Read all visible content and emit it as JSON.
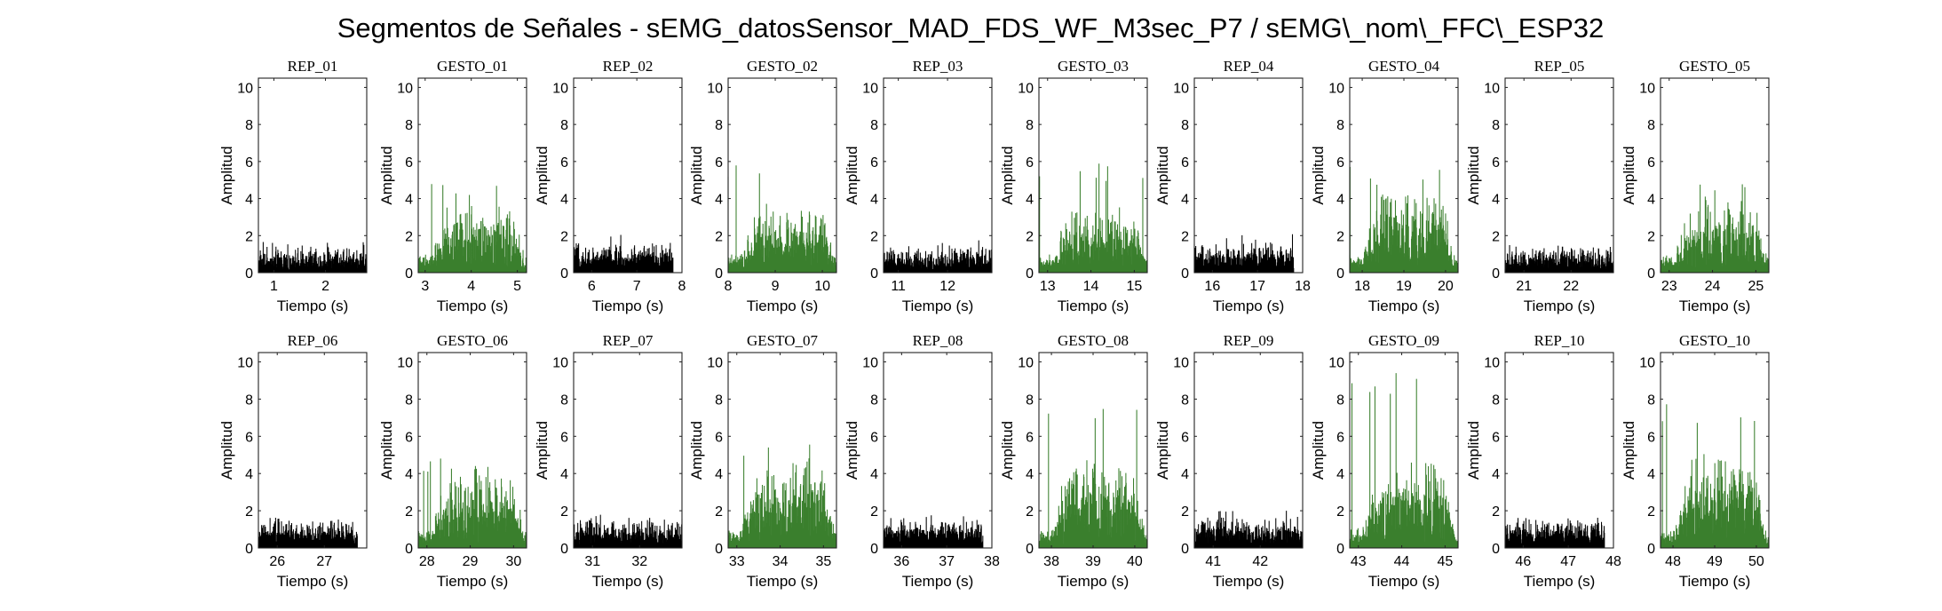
{
  "figure": {
    "title": "Segmentos de Señales - sEMG_datosSensor_MAD_FDS_WF_M3sec_P7 / sEMG\\_nom\\_FFC\\_ESP32"
  },
  "chart_data": {
    "type": "area",
    "layout": "2 rows x 10 columns of small multiples",
    "xlabel": "Tiempo (s)",
    "ylabel": "Amplitud",
    "ylim": [
      0,
      10.5
    ],
    "yticks": [
      0,
      2,
      4,
      6,
      8,
      10
    ],
    "colors": {
      "rep": "#000000",
      "gesto": "#3a7f2d"
    },
    "panels": [
      {
        "title": "REP_01",
        "kind": "rep",
        "xlim": [
          0.7,
          2.8
        ],
        "xticks": [
          1,
          2
        ],
        "data_end": 2.8,
        "baseline": 0.5,
        "noise": 1.3,
        "peak": 1.7
      },
      {
        "title": "GESTO_01",
        "kind": "gesto",
        "xlim": [
          2.85,
          5.2
        ],
        "xticks": [
          3,
          4,
          5
        ],
        "data_end": 5.2,
        "baseline": 0.6,
        "noise": 3.6,
        "peak": 4.9
      },
      {
        "title": "REP_02",
        "kind": "rep",
        "xlim": [
          5.6,
          8.0
        ],
        "xticks": [
          6,
          7,
          8
        ],
        "data_end": 7.8,
        "baseline": 0.5,
        "noise": 1.5,
        "peak": 2.1
      },
      {
        "title": "GESTO_02",
        "kind": "gesto",
        "xlim": [
          8.0,
          10.3
        ],
        "xticks": [
          8,
          9,
          10
        ],
        "data_end": 10.3,
        "baseline": 0.6,
        "noise": 3.6,
        "peak": 6.3
      },
      {
        "title": "REP_03",
        "kind": "rep",
        "xlim": [
          10.7,
          12.9
        ],
        "xticks": [
          11,
          12
        ],
        "data_end": 12.9,
        "baseline": 0.5,
        "noise": 1.4,
        "peak": 1.8
      },
      {
        "title": "GESTO_03",
        "kind": "gesto",
        "xlim": [
          12.8,
          15.3
        ],
        "xticks": [
          13,
          14,
          15
        ],
        "data_end": 15.3,
        "baseline": 0.6,
        "noise": 3.5,
        "peak": 6.0
      },
      {
        "title": "REP_04",
        "kind": "rep",
        "xlim": [
          15.6,
          18.0
        ],
        "xticks": [
          16,
          17,
          18
        ],
        "data_end": 17.8,
        "baseline": 0.5,
        "noise": 1.5,
        "peak": 2.1
      },
      {
        "title": "GESTO_04",
        "kind": "gesto",
        "xlim": [
          17.7,
          20.3
        ],
        "xticks": [
          18,
          19,
          20
        ],
        "data_end": 20.3,
        "baseline": 0.6,
        "noise": 4.5,
        "peak": 5.8
      },
      {
        "title": "REP_05",
        "kind": "rep",
        "xlim": [
          20.6,
          22.9
        ],
        "xticks": [
          21,
          22
        ],
        "data_end": 22.9,
        "baseline": 0.5,
        "noise": 1.4,
        "peak": 1.7
      },
      {
        "title": "GESTO_05",
        "kind": "gesto",
        "xlim": [
          22.8,
          25.3
        ],
        "xticks": [
          23,
          24,
          25
        ],
        "data_end": 25.3,
        "baseline": 0.6,
        "noise": 4.0,
        "peak": 4.9
      },
      {
        "title": "REP_06",
        "kind": "rep",
        "xlim": [
          25.6,
          27.9
        ],
        "xticks": [
          26,
          27
        ],
        "data_end": 27.7,
        "baseline": 0.5,
        "noise": 1.4,
        "peak": 1.7
      },
      {
        "title": "GESTO_06",
        "kind": "gesto",
        "xlim": [
          27.8,
          30.3
        ],
        "xticks": [
          28,
          29,
          30
        ],
        "data_end": 30.3,
        "baseline": 0.6,
        "noise": 4.2,
        "peak": 5.0
      },
      {
        "title": "REP_07",
        "kind": "rep",
        "xlim": [
          30.6,
          32.9
        ],
        "xticks": [
          31,
          32
        ],
        "data_end": 32.9,
        "baseline": 0.5,
        "noise": 1.5,
        "peak": 1.9
      },
      {
        "title": "GESTO_07",
        "kind": "gesto",
        "xlim": [
          32.8,
          35.3
        ],
        "xticks": [
          33,
          34,
          35
        ],
        "data_end": 35.3,
        "baseline": 0.6,
        "noise": 5.0,
        "peak": 6.0
      },
      {
        "title": "REP_08",
        "kind": "rep",
        "xlim": [
          35.6,
          38.0
        ],
        "xticks": [
          36,
          37,
          38
        ],
        "data_end": 37.8,
        "baseline": 0.5,
        "noise": 1.4,
        "peak": 1.8
      },
      {
        "title": "GESTO_08",
        "kind": "gesto",
        "xlim": [
          37.7,
          40.3
        ],
        "xticks": [
          38,
          39,
          40
        ],
        "data_end": 40.3,
        "baseline": 0.6,
        "noise": 4.8,
        "peak": 7.8
      },
      {
        "title": "REP_09",
        "kind": "rep",
        "xlim": [
          40.6,
          42.9
        ],
        "xticks": [
          41,
          42
        ],
        "data_end": 42.9,
        "baseline": 0.5,
        "noise": 1.5,
        "peak": 2.0
      },
      {
        "title": "GESTO_09",
        "kind": "gesto",
        "xlim": [
          42.8,
          45.3
        ],
        "xticks": [
          43,
          44,
          45
        ],
        "data_end": 45.3,
        "baseline": 0.6,
        "noise": 4.6,
        "peak": 9.9
      },
      {
        "title": "REP_10",
        "kind": "rep",
        "xlim": [
          45.6,
          48.0
        ],
        "xticks": [
          46,
          47,
          48
        ],
        "data_end": 47.8,
        "baseline": 0.5,
        "noise": 1.4,
        "peak": 1.8
      },
      {
        "title": "GESTO_10",
        "kind": "gesto",
        "xlim": [
          47.7,
          50.3
        ],
        "xticks": [
          48,
          49,
          50
        ],
        "data_end": 50.3,
        "baseline": 0.6,
        "noise": 5.2,
        "peak": 7.8
      }
    ]
  }
}
